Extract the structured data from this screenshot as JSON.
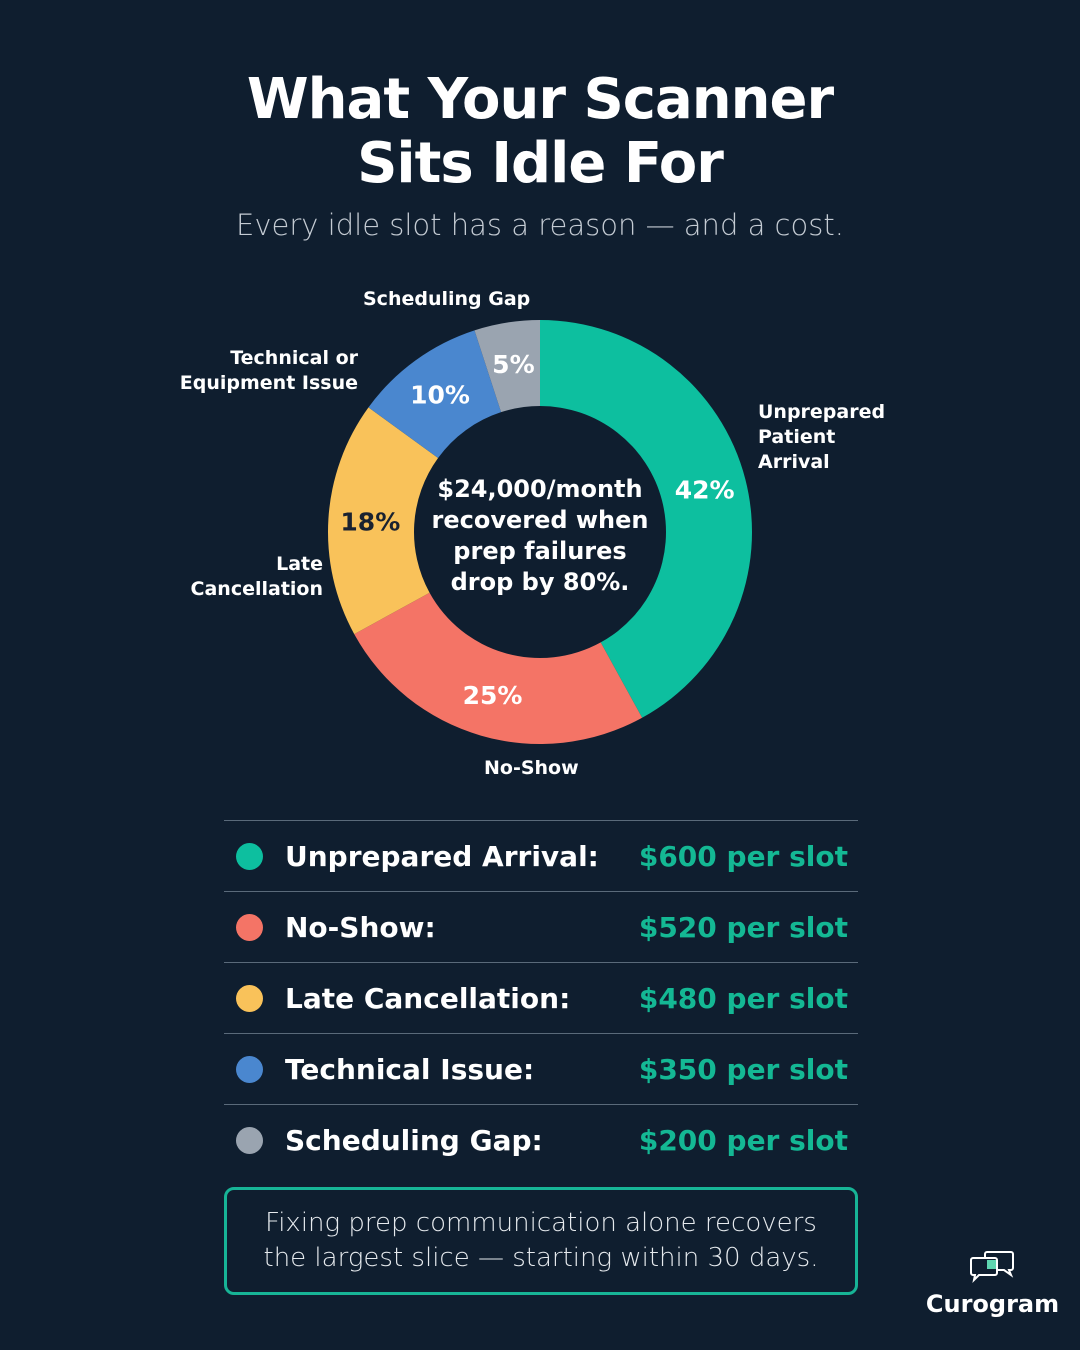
{
  "header": {
    "title_line1": "What Your Scanner",
    "title_line2": "Sits Idle For",
    "subtitle": "Every idle slot has a reason — and a cost."
  },
  "chart_data": {
    "type": "pie",
    "donut": true,
    "center_text": "$24,000/month recovered when prep failures drop by 80%.",
    "center_lines": [
      "$24,000/month",
      "recovered when",
      "prep failures",
      "drop by 80%."
    ],
    "slices": [
      {
        "label": "Unprepared Patient Arrival",
        "value": 42,
        "value_label": "42%",
        "color": "#0dbf9f",
        "label_lines": [
          "Unprepared",
          "Patient",
          "Arrival"
        ]
      },
      {
        "label": "No-Show",
        "value": 25,
        "value_label": "25%",
        "color": "#f47466",
        "label_lines": [
          "No-Show"
        ]
      },
      {
        "label": "Late Cancellation",
        "value": 18,
        "value_label": "18%",
        "color": "#f9c25a",
        "label_lines": [
          "Late",
          "Cancellation"
        ]
      },
      {
        "label": "Technical or Equipment Issue",
        "value": 10,
        "value_label": "10%",
        "color": "#4a87cf",
        "label_lines": [
          "Technical or",
          "Equipment Issue"
        ]
      },
      {
        "label": "Scheduling Gap",
        "value": 5,
        "value_label": "5%",
        "color": "#9aa4b0",
        "label_lines": [
          "Scheduling Gap"
        ]
      }
    ]
  },
  "legend": [
    {
      "label": "Unprepared Arrival:",
      "value": "$600 per slot",
      "color": "#0dbf9f"
    },
    {
      "label": "No-Show:",
      "value": "$520 per slot",
      "color": "#f47466"
    },
    {
      "label": "Late Cancellation:",
      "value": "$480 per slot",
      "color": "#f9c25a"
    },
    {
      "label": "Technical Issue:",
      "value": "$350 per slot",
      "color": "#4a87cf"
    },
    {
      "label": "Scheduling Gap:",
      "value": "$200 per slot",
      "color": "#9aa4b0"
    }
  ],
  "callout": "Fixing prep communication alone recovers the largest slice — starting within 30 days.",
  "brand": {
    "name": "Curogram",
    "icon": "chat-bubbles-icon",
    "accent": "#5fd6b0"
  }
}
